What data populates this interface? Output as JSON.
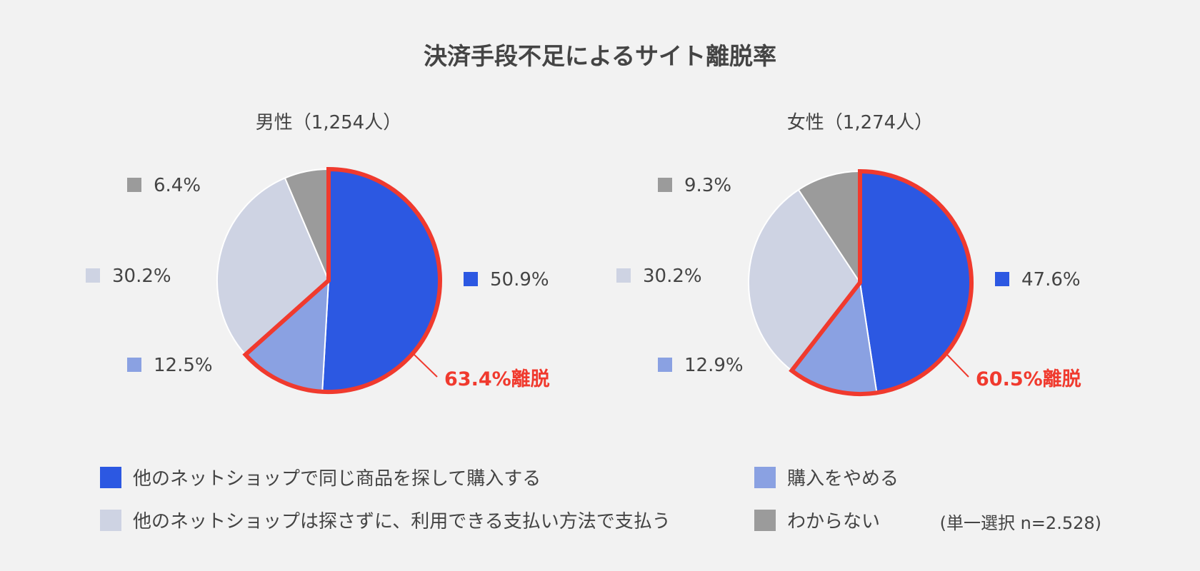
{
  "chart_data": {
    "type": "pie",
    "title": "決済手段不足によるサイト離脱率",
    "colors": {
      "blue": "#2c58e2",
      "lightblue": "#8aa1e2",
      "pale": "#ced3e3",
      "gray": "#9b9b9b",
      "highlight": "#f03a2e"
    },
    "categories": [
      "他のネットショップで同じ商品を探して購入する",
      "購入をやめる",
      "他のネットショップは探さずに、利用できる支払い方法で支払う",
      "わからない"
    ],
    "charts": [
      {
        "title": "男性（1,254人）",
        "values": [
          50.9,
          12.5,
          30.2,
          6.4
        ],
        "labels": [
          "50.9%",
          "12.5%",
          "30.2%",
          "6.4%"
        ],
        "callout": "63.4%離脱"
      },
      {
        "title": "女性（1,274人）",
        "values": [
          47.6,
          12.9,
          30.2,
          9.3
        ],
        "labels": [
          "47.6%",
          "12.9%",
          "30.2%",
          "9.3%"
        ],
        "callout": "60.5%離脱"
      }
    ]
  },
  "legend": {
    "items": [
      {
        "label": "他のネットショップで同じ商品を探して購入する",
        "color": "#2c58e2"
      },
      {
        "label": "購入をやめる",
        "color": "#8aa1e2"
      },
      {
        "label": "他のネットショップは探さずに、利用できる支払い方法で支払う",
        "color": "#ced3e3"
      },
      {
        "label": "わからない",
        "color": "#9b9b9b"
      }
    ]
  },
  "note": "(単一選択 n=2.528)"
}
